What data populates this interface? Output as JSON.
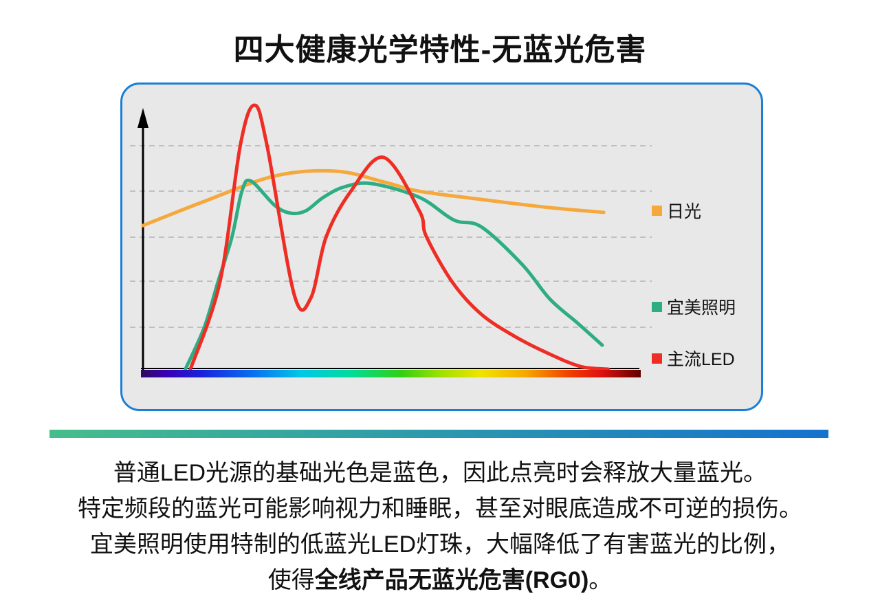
{
  "title": "四大健康光学特性-无蓝光危害",
  "colors": {
    "chart_border": "#1b7fd4",
    "chart_bg": "#e8e8e8",
    "gridline": "#c0c0c0",
    "axis": "#000000",
    "separator_start": "#45be8b",
    "separator_end": "#1572ce"
  },
  "chart": {
    "legend": [
      {
        "label": "日光",
        "color": "#f5a83c"
      },
      {
        "label": "宜美照明",
        "color": "#2ead85"
      },
      {
        "label": "主流LED",
        "color": "#ee2e24"
      }
    ],
    "spectrum_gradient": [
      {
        "c": "#2e0b5e",
        "p": "0%"
      },
      {
        "c": "#3a00b4",
        "p": "5%"
      },
      {
        "c": "#1822dc",
        "p": "12%"
      },
      {
        "c": "#0a6cf0",
        "p": "22%"
      },
      {
        "c": "#00c8e8",
        "p": "32%"
      },
      {
        "c": "#00dc9b",
        "p": "42%"
      },
      {
        "c": "#30d014",
        "p": "52%"
      },
      {
        "c": "#a0e000",
        "p": "60%"
      },
      {
        "c": "#f0e400",
        "p": "68%"
      },
      {
        "c": "#f5a800",
        "p": "77%"
      },
      {
        "c": "#f03c00",
        "p": "86%"
      },
      {
        "c": "#e01010",
        "p": "92%"
      },
      {
        "c": "#600000",
        "p": "100%"
      }
    ]
  },
  "chart_data": {
    "type": "line",
    "title": "",
    "xlabel": "visible spectrum wavelength (violet to red color bar, no tick labels)",
    "ylabel": "relative spectral intensity (unlabeled axis with arrow)",
    "x_range": [
      0,
      1
    ],
    "y_range": [
      0,
      1
    ],
    "grid": "5 horizontal dashed gridlines",
    "legend_position": "right",
    "series": [
      {
        "name": "日光",
        "color": "#f5a83c",
        "points": [
          [
            0.004,
            0.544
          ],
          [
            0.13,
            0.638
          ],
          [
            0.268,
            0.732
          ],
          [
            0.39,
            0.75
          ],
          [
            0.488,
            0.708
          ],
          [
            0.557,
            0.674
          ],
          [
            0.681,
            0.643
          ],
          [
            0.818,
            0.612
          ],
          [
            0.926,
            0.594
          ]
        ]
      },
      {
        "name": "宜美照明",
        "color": "#2ead85",
        "points": [
          [
            0.089,
            0.0
          ],
          [
            0.127,
            0.16
          ],
          [
            0.154,
            0.33
          ],
          [
            0.182,
            0.5
          ],
          [
            0.202,
            0.674
          ],
          [
            0.22,
            0.713
          ],
          [
            0.268,
            0.62
          ],
          [
            0.3,
            0.591
          ],
          [
            0.33,
            0.6
          ],
          [
            0.365,
            0.651
          ],
          [
            0.406,
            0.69
          ],
          [
            0.461,
            0.703
          ],
          [
            0.557,
            0.651
          ],
          [
            0.626,
            0.565
          ],
          [
            0.681,
            0.539
          ],
          [
            0.763,
            0.396
          ],
          [
            0.818,
            0.266
          ],
          [
            0.874,
            0.174
          ],
          [
            0.923,
            0.091
          ]
        ]
      },
      {
        "name": "主流LED",
        "color": "#ee2e24",
        "points": [
          [
            0.099,
            0.0
          ],
          [
            0.158,
            0.33
          ],
          [
            0.199,
            0.85
          ],
          [
            0.227,
            1.0
          ],
          [
            0.252,
            0.85
          ],
          [
            0.307,
            0.28
          ],
          [
            0.34,
            0.27
          ],
          [
            0.371,
            0.503
          ],
          [
            0.42,
            0.674
          ],
          [
            0.486,
            0.802
          ],
          [
            0.557,
            0.6
          ],
          [
            0.571,
            0.503
          ],
          [
            0.623,
            0.33
          ],
          [
            0.681,
            0.208
          ],
          [
            0.75,
            0.122
          ],
          [
            0.818,
            0.057
          ],
          [
            0.88,
            0.01
          ],
          [
            0.935,
            0.0
          ]
        ]
      }
    ]
  },
  "body": {
    "line1": "普通LED光源的基础光色是蓝色，因此点亮时会释放大量蓝光。",
    "line2": "特定频段的蓝光可能影响视力和睡眠，甚至对眼底造成不可逆的损伤。",
    "line3": "宜美照明使用特制的低蓝光LED灯珠，大幅降低了有害蓝光的比例，",
    "line4_prefix": "使得",
    "line4_bold": "全线产品无蓝光危害(RG0)",
    "line4_suffix": "。"
  }
}
